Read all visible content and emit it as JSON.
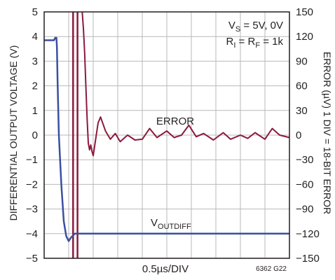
{
  "chart_data": {
    "type": "line",
    "title": "",
    "xlabel": "0.5µs/DIV",
    "ylabel_left": "DIFFERENTIAL OUTPUT VOLTAGE (V)",
    "ylabel_right": "ERROR (µV) 1 DIV = 18-BIT ERROR",
    "x_divisions": 10,
    "grid": true,
    "ylim_left": [
      -5,
      5
    ],
    "ylim_right": [
      -150,
      150
    ],
    "yticks_left": [
      "5",
      "4",
      "3",
      "2",
      "1",
      "0",
      "−1",
      "−2",
      "−3",
      "−4",
      "−5"
    ],
    "yticks_right": [
      "150",
      "120",
      "90",
      "60",
      "30",
      "0",
      "−30",
      "−60",
      "−90",
      "−120",
      "−150"
    ],
    "conditions": {
      "line1": "V",
      "line1_sub": "S",
      "line1_rest": " = 5V, 0V",
      "line2_a": "R",
      "line2_a_sub": "I",
      "line2_b": " = R",
      "line2_b_sub": "F",
      "line2_rest": " = 1k"
    },
    "series": [
      {
        "name": "VOUTDIFF",
        "label_main": "V",
        "label_sub": "OUTDIFF",
        "axis": "left",
        "color": "#3b4fa0",
        "x_div": [
          0.0,
          0.35,
          0.4,
          0.45,
          0.5,
          0.52,
          0.55,
          0.6,
          0.7,
          0.8,
          0.9,
          1.0,
          1.1,
          1.2,
          1.25,
          1.3,
          1.35,
          1.4,
          1.5,
          1.6,
          1.7,
          2.0,
          4.0,
          6.0,
          8.0,
          10.0
        ],
        "y": [
          3.85,
          3.85,
          3.85,
          3.95,
          3.95,
          3.6,
          2.0,
          0.0,
          -2.0,
          -3.5,
          -4.1,
          -4.3,
          -4.15,
          -4.05,
          -4.0,
          -4.0,
          -4.0,
          -4.0,
          -4.0,
          -4.0,
          -4.0,
          -4.0,
          -4.0,
          -4.0,
          -4.0,
          -4.0
        ]
      },
      {
        "name": "ERROR",
        "axis": "right",
        "color": "#8b1a3c",
        "x_div": [
          1.55,
          1.6,
          1.65,
          1.7,
          1.75,
          1.8,
          1.85,
          1.9,
          1.95,
          2.0,
          2.1,
          2.2,
          2.3,
          2.5,
          2.7,
          2.9,
          3.1,
          3.4,
          3.7,
          4.0,
          4.3,
          4.6,
          5.0,
          5.3,
          5.6,
          5.9,
          6.2,
          6.5,
          6.9,
          7.3,
          7.6,
          8.0,
          8.3,
          8.6,
          9.0,
          9.3,
          9.6,
          10.0
        ],
        "y": [
          150,
          130,
          100,
          60,
          20,
          -10,
          -18,
          -12,
          -20,
          -25,
          -5,
          15,
          22,
          5,
          -5,
          2,
          -8,
          0,
          -6,
          -5,
          8,
          -3,
          5,
          -3,
          0,
          12,
          -2,
          2,
          -6,
          3,
          -5,
          0,
          -4,
          3,
          -5,
          8,
          0,
          -3
        ]
      }
    ],
    "markers": {
      "color": "#8b1a3c",
      "x_div": [
        1.18,
        1.36
      ]
    },
    "footnote": "6362 G22"
  }
}
